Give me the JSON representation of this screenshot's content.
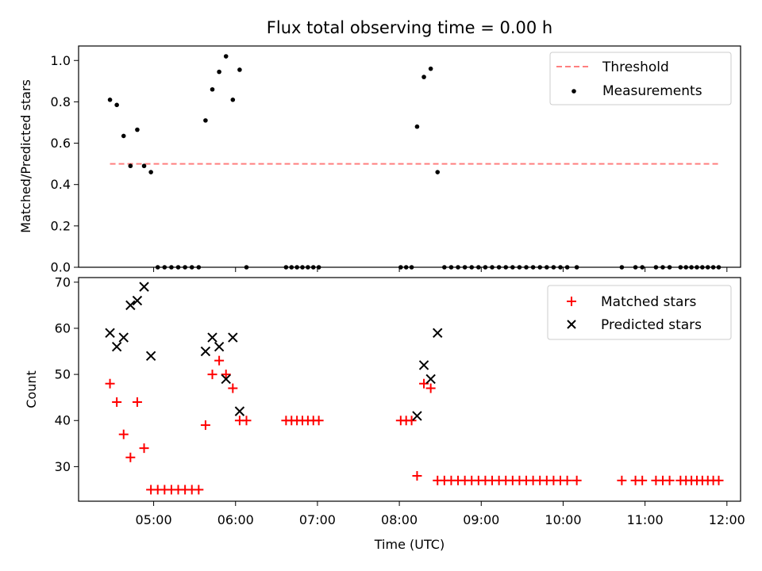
{
  "chart_data": [
    {
      "type": "scatter",
      "title": "Flux total observing time = 0.00 h",
      "xlabel": "",
      "ylabel": "Matched/Predicted stars",
      "xlim": [
        "04:05",
        "12:10"
      ],
      "ylim": [
        0,
        1.07
      ],
      "yticks": [
        0.0,
        0.2,
        0.4,
        0.6,
        0.8,
        1.0
      ],
      "ytick_labels": [
        "0.0",
        "0.2",
        "0.4",
        "0.6",
        "0.8",
        "1.0"
      ],
      "legend_position": "top-right",
      "threshold": {
        "name": "Threshold",
        "value": 0.5,
        "x_range": [
          "04:28",
          "11:55"
        ],
        "color": "#ff7f7f",
        "style": "dashed"
      },
      "series": [
        {
          "name": "Measurements",
          "color": "#000000",
          "marker": "dot",
          "points": [
            {
              "x": "04:28",
              "y": 0.81
            },
            {
              "x": "04:33",
              "y": 0.785
            },
            {
              "x": "04:38",
              "y": 0.635
            },
            {
              "x": "04:43",
              "y": 0.49
            },
            {
              "x": "04:48",
              "y": 0.665
            },
            {
              "x": "04:53",
              "y": 0.49
            },
            {
              "x": "04:58",
              "y": 0.46
            },
            {
              "x": "05:03",
              "y": 0.0
            },
            {
              "x": "05:08",
              "y": 0.0
            },
            {
              "x": "05:13",
              "y": 0.0
            },
            {
              "x": "05:18",
              "y": 0.0
            },
            {
              "x": "05:23",
              "y": 0.0
            },
            {
              "x": "05:28",
              "y": 0.0
            },
            {
              "x": "05:33",
              "y": 0.0
            },
            {
              "x": "05:38",
              "y": 0.71
            },
            {
              "x": "05:43",
              "y": 0.86
            },
            {
              "x": "05:48",
              "y": 0.945
            },
            {
              "x": "05:53",
              "y": 1.02
            },
            {
              "x": "05:58",
              "y": 0.81
            },
            {
              "x": "06:03",
              "y": 0.955
            },
            {
              "x": "06:08",
              "y": 0.0
            },
            {
              "x": "06:37",
              "y": 0.0
            },
            {
              "x": "06:41",
              "y": 0.0
            },
            {
              "x": "06:45",
              "y": 0.0
            },
            {
              "x": "06:49",
              "y": 0.0
            },
            {
              "x": "06:53",
              "y": 0.0
            },
            {
              "x": "06:57",
              "y": 0.0
            },
            {
              "x": "07:01",
              "y": 0.0
            },
            {
              "x": "08:01",
              "y": 0.0
            },
            {
              "x": "08:05",
              "y": 0.0
            },
            {
              "x": "08:09",
              "y": 0.0
            },
            {
              "x": "08:13",
              "y": 0.68
            },
            {
              "x": "08:18",
              "y": 0.92
            },
            {
              "x": "08:23",
              "y": 0.96
            },
            {
              "x": "08:28",
              "y": 0.46
            },
            {
              "x": "08:33",
              "y": 0.0
            },
            {
              "x": "08:38",
              "y": 0.0
            },
            {
              "x": "08:43",
              "y": 0.0
            },
            {
              "x": "08:48",
              "y": 0.0
            },
            {
              "x": "08:53",
              "y": 0.0
            },
            {
              "x": "08:58",
              "y": 0.0
            },
            {
              "x": "09:03",
              "y": 0.0
            },
            {
              "x": "09:08",
              "y": 0.0
            },
            {
              "x": "09:13",
              "y": 0.0
            },
            {
              "x": "09:18",
              "y": 0.0
            },
            {
              "x": "09:23",
              "y": 0.0
            },
            {
              "x": "09:28",
              "y": 0.0
            },
            {
              "x": "09:33",
              "y": 0.0
            },
            {
              "x": "09:38",
              "y": 0.0
            },
            {
              "x": "09:43",
              "y": 0.0
            },
            {
              "x": "09:48",
              "y": 0.0
            },
            {
              "x": "09:53",
              "y": 0.0
            },
            {
              "x": "09:58",
              "y": 0.0
            },
            {
              "x": "10:03",
              "y": 0.0
            },
            {
              "x": "10:10",
              "y": 0.0
            },
            {
              "x": "10:43",
              "y": 0.0
            },
            {
              "x": "10:53",
              "y": 0.0
            },
            {
              "x": "10:58",
              "y": 0.0
            },
            {
              "x": "11:08",
              "y": 0.0
            },
            {
              "x": "11:13",
              "y": 0.0
            },
            {
              "x": "11:18",
              "y": 0.0
            },
            {
              "x": "11:26",
              "y": 0.0
            },
            {
              "x": "11:30",
              "y": 0.0
            },
            {
              "x": "11:34",
              "y": 0.0
            },
            {
              "x": "11:38",
              "y": 0.0
            },
            {
              "x": "11:42",
              "y": 0.0
            },
            {
              "x": "11:46",
              "y": 0.0
            },
            {
              "x": "11:50",
              "y": 0.0
            },
            {
              "x": "11:54",
              "y": 0.0
            }
          ]
        }
      ]
    },
    {
      "type": "scatter",
      "title": "",
      "xlabel": "Time (UTC)",
      "ylabel": "Count",
      "xlim": [
        "04:05",
        "12:10"
      ],
      "ylim": [
        22.5,
        71
      ],
      "xticks": [
        "05:00",
        "06:00",
        "07:00",
        "08:00",
        "09:00",
        "10:00",
        "11:00",
        "12:00"
      ],
      "xtick_labels": [
        "05:00",
        "06:00",
        "07:00",
        "08:00",
        "09:00",
        "10:00",
        "11:00",
        "12:00"
      ],
      "yticks": [
        30,
        40,
        50,
        60,
        70
      ],
      "ytick_labels": [
        "30",
        "40",
        "50",
        "60",
        "70"
      ],
      "legend_position": "top-right",
      "series": [
        {
          "name": "Matched stars",
          "color": "#ff0000",
          "marker": "plus",
          "points": [
            {
              "x": "04:28",
              "y": 48
            },
            {
              "x": "04:33",
              "y": 44
            },
            {
              "x": "04:38",
              "y": 37
            },
            {
              "x": "04:43",
              "y": 32
            },
            {
              "x": "04:48",
              "y": 44
            },
            {
              "x": "04:53",
              "y": 34
            },
            {
              "x": "04:58",
              "y": 25
            },
            {
              "x": "05:03",
              "y": 25
            },
            {
              "x": "05:08",
              "y": 25
            },
            {
              "x": "05:13",
              "y": 25
            },
            {
              "x": "05:18",
              "y": 25
            },
            {
              "x": "05:23",
              "y": 25
            },
            {
              "x": "05:28",
              "y": 25
            },
            {
              "x": "05:33",
              "y": 25
            },
            {
              "x": "05:38",
              "y": 39
            },
            {
              "x": "05:43",
              "y": 50
            },
            {
              "x": "05:48",
              "y": 53
            },
            {
              "x": "05:53",
              "y": 50
            },
            {
              "x": "05:58",
              "y": 47
            },
            {
              "x": "06:03",
              "y": 40
            },
            {
              "x": "06:08",
              "y": 40
            },
            {
              "x": "06:37",
              "y": 40
            },
            {
              "x": "06:41",
              "y": 40
            },
            {
              "x": "06:45",
              "y": 40
            },
            {
              "x": "06:49",
              "y": 40
            },
            {
              "x": "06:53",
              "y": 40
            },
            {
              "x": "06:57",
              "y": 40
            },
            {
              "x": "07:01",
              "y": 40
            },
            {
              "x": "08:01",
              "y": 40
            },
            {
              "x": "08:05",
              "y": 40
            },
            {
              "x": "08:09",
              "y": 40
            },
            {
              "x": "08:13",
              "y": 28
            },
            {
              "x": "08:18",
              "y": 48
            },
            {
              "x": "08:23",
              "y": 47
            },
            {
              "x": "08:28",
              "y": 27
            },
            {
              "x": "08:33",
              "y": 27
            },
            {
              "x": "08:38",
              "y": 27
            },
            {
              "x": "08:43",
              "y": 27
            },
            {
              "x": "08:48",
              "y": 27
            },
            {
              "x": "08:53",
              "y": 27
            },
            {
              "x": "08:58",
              "y": 27
            },
            {
              "x": "09:03",
              "y": 27
            },
            {
              "x": "09:08",
              "y": 27
            },
            {
              "x": "09:13",
              "y": 27
            },
            {
              "x": "09:18",
              "y": 27
            },
            {
              "x": "09:23",
              "y": 27
            },
            {
              "x": "09:28",
              "y": 27
            },
            {
              "x": "09:33",
              "y": 27
            },
            {
              "x": "09:38",
              "y": 27
            },
            {
              "x": "09:43",
              "y": 27
            },
            {
              "x": "09:48",
              "y": 27
            },
            {
              "x": "09:53",
              "y": 27
            },
            {
              "x": "09:58",
              "y": 27
            },
            {
              "x": "10:03",
              "y": 27
            },
            {
              "x": "10:10",
              "y": 27
            },
            {
              "x": "10:43",
              "y": 27
            },
            {
              "x": "10:53",
              "y": 27
            },
            {
              "x": "10:58",
              "y": 27
            },
            {
              "x": "11:08",
              "y": 27
            },
            {
              "x": "11:13",
              "y": 27
            },
            {
              "x": "11:18",
              "y": 27
            },
            {
              "x": "11:26",
              "y": 27
            },
            {
              "x": "11:30",
              "y": 27
            },
            {
              "x": "11:34",
              "y": 27
            },
            {
              "x": "11:38",
              "y": 27
            },
            {
              "x": "11:42",
              "y": 27
            },
            {
              "x": "11:46",
              "y": 27
            },
            {
              "x": "11:50",
              "y": 27
            },
            {
              "x": "11:54",
              "y": 27
            }
          ]
        },
        {
          "name": "Predicted stars",
          "color": "#000000",
          "marker": "x",
          "points": [
            {
              "x": "04:28",
              "y": 59
            },
            {
              "x": "04:33",
              "y": 56
            },
            {
              "x": "04:38",
              "y": 58
            },
            {
              "x": "04:43",
              "y": 65
            },
            {
              "x": "04:48",
              "y": 66
            },
            {
              "x": "04:53",
              "y": 69
            },
            {
              "x": "04:58",
              "y": 54
            },
            {
              "x": "05:38",
              "y": 55
            },
            {
              "x": "05:43",
              "y": 58
            },
            {
              "x": "05:48",
              "y": 56
            },
            {
              "x": "05:53",
              "y": 49
            },
            {
              "x": "05:58",
              "y": 58
            },
            {
              "x": "06:03",
              "y": 42
            },
            {
              "x": "08:13",
              "y": 41
            },
            {
              "x": "08:18",
              "y": 52
            },
            {
              "x": "08:23",
              "y": 49
            },
            {
              "x": "08:28",
              "y": 59
            }
          ]
        }
      ]
    }
  ]
}
